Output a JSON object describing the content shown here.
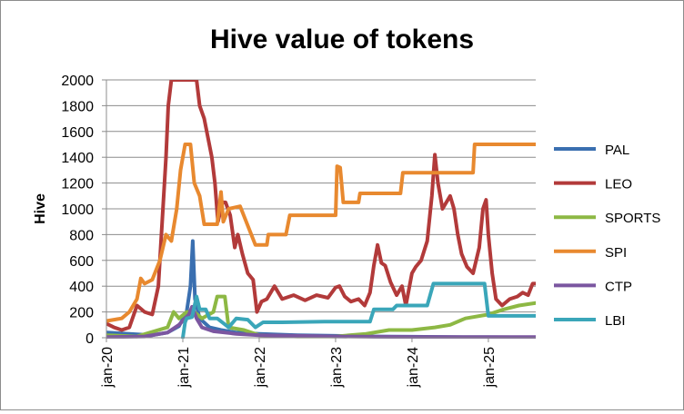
{
  "chart_data": {
    "type": "line",
    "title": "Hive value of tokens",
    "xlabel": "",
    "ylabel": "Hive",
    "ylim": [
      0,
      2000
    ],
    "yticks": [
      0,
      200,
      400,
      600,
      800,
      1000,
      1200,
      1400,
      1600,
      1800,
      2000
    ],
    "xlim": [
      2020.0,
      2025.62
    ],
    "xticks": [
      {
        "label": "jan-20",
        "value": 2020.0
      },
      {
        "label": "jan-21",
        "value": 2021.0
      },
      {
        "label": "jan-22",
        "value": 2022.0
      },
      {
        "label": "jan-23",
        "value": 2023.0
      },
      {
        "label": "jan-24",
        "value": 2024.0
      },
      {
        "label": "jan-25",
        "value": 2025.0
      }
    ],
    "grid": "horizontal",
    "legend_position": "right",
    "series": [
      {
        "name": "PAL",
        "color": "#3a6fb0",
        "points": [
          [
            2020.0,
            40
          ],
          [
            2020.3,
            30
          ],
          [
            2020.6,
            20
          ],
          [
            2020.8,
            40
          ],
          [
            2020.95,
            90
          ],
          [
            2021.05,
            200
          ],
          [
            2021.1,
            400
          ],
          [
            2021.13,
            750
          ],
          [
            2021.16,
            300
          ],
          [
            2021.22,
            150
          ],
          [
            2021.35,
            80
          ],
          [
            2021.5,
            60
          ],
          [
            2021.7,
            40
          ],
          [
            2022.0,
            30
          ],
          [
            2022.5,
            20
          ],
          [
            2023.0,
            15
          ],
          [
            2023.5,
            10
          ],
          [
            2024.0,
            8
          ],
          [
            2024.5,
            5
          ],
          [
            2025.0,
            4
          ],
          [
            2025.62,
            3
          ]
        ]
      },
      {
        "name": "LEO",
        "color": "#b23a3a",
        "points": [
          [
            2020.0,
            110
          ],
          [
            2020.1,
            80
          ],
          [
            2020.2,
            60
          ],
          [
            2020.3,
            80
          ],
          [
            2020.4,
            250
          ],
          [
            2020.5,
            200
          ],
          [
            2020.6,
            180
          ],
          [
            2020.68,
            400
          ],
          [
            2020.73,
            900
          ],
          [
            2020.78,
            1400
          ],
          [
            2020.81,
            1800
          ],
          [
            2020.85,
            2000
          ],
          [
            2020.92,
            2000
          ],
          [
            2021.0,
            2000
          ],
          [
            2021.05,
            2000
          ],
          [
            2021.18,
            2000
          ],
          [
            2021.22,
            1800
          ],
          [
            2021.28,
            1700
          ],
          [
            2021.33,
            1550
          ],
          [
            2021.38,
            1400
          ],
          [
            2021.42,
            1200
          ],
          [
            2021.46,
            900
          ],
          [
            2021.52,
            1050
          ],
          [
            2021.56,
            1050
          ],
          [
            2021.62,
            950
          ],
          [
            2021.68,
            700
          ],
          [
            2021.72,
            800
          ],
          [
            2021.78,
            650
          ],
          [
            2021.85,
            500
          ],
          [
            2021.92,
            450
          ],
          [
            2021.97,
            200
          ],
          [
            2022.03,
            280
          ],
          [
            2022.1,
            300
          ],
          [
            2022.2,
            400
          ],
          [
            2022.3,
            300
          ],
          [
            2022.45,
            330
          ],
          [
            2022.6,
            290
          ],
          [
            2022.75,
            330
          ],
          [
            2022.9,
            310
          ],
          [
            2023.0,
            390
          ],
          [
            2023.05,
            400
          ],
          [
            2023.12,
            320
          ],
          [
            2023.2,
            280
          ],
          [
            2023.3,
            300
          ],
          [
            2023.38,
            250
          ],
          [
            2023.45,
            350
          ],
          [
            2023.5,
            560
          ],
          [
            2023.55,
            720
          ],
          [
            2023.6,
            580
          ],
          [
            2023.65,
            560
          ],
          [
            2023.72,
            430
          ],
          [
            2023.8,
            330
          ],
          [
            2023.87,
            400
          ],
          [
            2023.92,
            250
          ],
          [
            2024.0,
            500
          ],
          [
            2024.05,
            550
          ],
          [
            2024.12,
            600
          ],
          [
            2024.2,
            750
          ],
          [
            2024.26,
            1100
          ],
          [
            2024.3,
            1420
          ],
          [
            2024.34,
            1200
          ],
          [
            2024.4,
            1000
          ],
          [
            2024.45,
            1050
          ],
          [
            2024.5,
            1100
          ],
          [
            2024.55,
            1000
          ],
          [
            2024.6,
            800
          ],
          [
            2024.65,
            650
          ],
          [
            2024.72,
            550
          ],
          [
            2024.8,
            500
          ],
          [
            2024.88,
            700
          ],
          [
            2024.93,
            1000
          ],
          [
            2024.97,
            1070
          ],
          [
            2025.0,
            800
          ],
          [
            2025.05,
            500
          ],
          [
            2025.1,
            300
          ],
          [
            2025.18,
            250
          ],
          [
            2025.28,
            300
          ],
          [
            2025.38,
            320
          ],
          [
            2025.45,
            350
          ],
          [
            2025.52,
            330
          ],
          [
            2025.58,
            420
          ],
          [
            2025.62,
            420
          ]
        ]
      },
      {
        "name": "SPORTS",
        "color": "#8db844",
        "points": [
          [
            2020.0,
            20
          ],
          [
            2020.4,
            10
          ],
          [
            2020.8,
            80
          ],
          [
            2020.88,
            200
          ],
          [
            2020.95,
            150
          ],
          [
            2021.05,
            200
          ],
          [
            2021.15,
            200
          ],
          [
            2021.25,
            150
          ],
          [
            2021.4,
            200
          ],
          [
            2021.45,
            320
          ],
          [
            2021.55,
            320
          ],
          [
            2021.6,
            80
          ],
          [
            2021.8,
            60
          ],
          [
            2022.0,
            20
          ],
          [
            2022.5,
            10
          ],
          [
            2023.0,
            10
          ],
          [
            2023.4,
            30
          ],
          [
            2023.7,
            60
          ],
          [
            2024.0,
            60
          ],
          [
            2024.3,
            80
          ],
          [
            2024.5,
            100
          ],
          [
            2024.7,
            150
          ],
          [
            2025.0,
            180
          ],
          [
            2025.2,
            220
          ],
          [
            2025.4,
            250
          ],
          [
            2025.62,
            270
          ]
        ]
      },
      {
        "name": "SPI",
        "color": "#e8892f",
        "points": [
          [
            2020.0,
            130
          ],
          [
            2020.2,
            150
          ],
          [
            2020.3,
            200
          ],
          [
            2020.4,
            300
          ],
          [
            2020.45,
            460
          ],
          [
            2020.5,
            420
          ],
          [
            2020.6,
            450
          ],
          [
            2020.7,
            600
          ],
          [
            2020.78,
            800
          ],
          [
            2020.85,
            750
          ],
          [
            2020.92,
            1000
          ],
          [
            2020.97,
            1300
          ],
          [
            2021.03,
            1500
          ],
          [
            2021.1,
            1500
          ],
          [
            2021.15,
            1200
          ],
          [
            2021.22,
            1100
          ],
          [
            2021.28,
            880
          ],
          [
            2021.45,
            880
          ],
          [
            2021.5,
            1130
          ],
          [
            2021.53,
            900
          ],
          [
            2021.6,
            1000
          ],
          [
            2021.75,
            1020
          ],
          [
            2021.95,
            720
          ],
          [
            2022.1,
            720
          ],
          [
            2022.12,
            800
          ],
          [
            2022.35,
            800
          ],
          [
            2022.4,
            950
          ],
          [
            2023.0,
            950
          ],
          [
            2023.02,
            1330
          ],
          [
            2023.06,
            1320
          ],
          [
            2023.1,
            1050
          ],
          [
            2023.3,
            1050
          ],
          [
            2023.32,
            1120
          ],
          [
            2023.85,
            1120
          ],
          [
            2023.88,
            1280
          ],
          [
            2024.8,
            1280
          ],
          [
            2024.82,
            1500
          ],
          [
            2025.62,
            1500
          ]
        ]
      },
      {
        "name": "CTP",
        "color": "#7b56a0",
        "points": [
          [
            2020.0,
            5
          ],
          [
            2020.5,
            10
          ],
          [
            2020.8,
            40
          ],
          [
            2020.95,
            100
          ],
          [
            2021.08,
            180
          ],
          [
            2021.12,
            240
          ],
          [
            2021.18,
            150
          ],
          [
            2021.25,
            80
          ],
          [
            2021.4,
            50
          ],
          [
            2021.7,
            30
          ],
          [
            2022.0,
            20
          ],
          [
            2022.5,
            15
          ],
          [
            2023.0,
            10
          ],
          [
            2023.5,
            8
          ],
          [
            2024.0,
            6
          ],
          [
            2025.0,
            5
          ],
          [
            2025.62,
            5
          ]
        ]
      },
      {
        "name": "LBI",
        "color": "#3aa6b9",
        "points": [
          [
            2021.0,
            0
          ],
          [
            2021.03,
            120
          ],
          [
            2021.05,
            150
          ],
          [
            2021.12,
            160
          ],
          [
            2021.18,
            320
          ],
          [
            2021.22,
            220
          ],
          [
            2021.3,
            220
          ],
          [
            2021.35,
            150
          ],
          [
            2021.45,
            150
          ],
          [
            2021.6,
            80
          ],
          [
            2021.7,
            150
          ],
          [
            2021.85,
            140
          ],
          [
            2021.95,
            80
          ],
          [
            2022.05,
            120
          ],
          [
            2022.3,
            120
          ],
          [
            2022.85,
            125
          ],
          [
            2023.0,
            125
          ],
          [
            2023.1,
            125
          ],
          [
            2023.45,
            125
          ],
          [
            2023.5,
            220
          ],
          [
            2023.75,
            220
          ],
          [
            2023.8,
            250
          ],
          [
            2024.2,
            250
          ],
          [
            2024.28,
            420
          ],
          [
            2024.95,
            420
          ],
          [
            2025.0,
            170
          ],
          [
            2025.62,
            170
          ]
        ]
      }
    ]
  }
}
